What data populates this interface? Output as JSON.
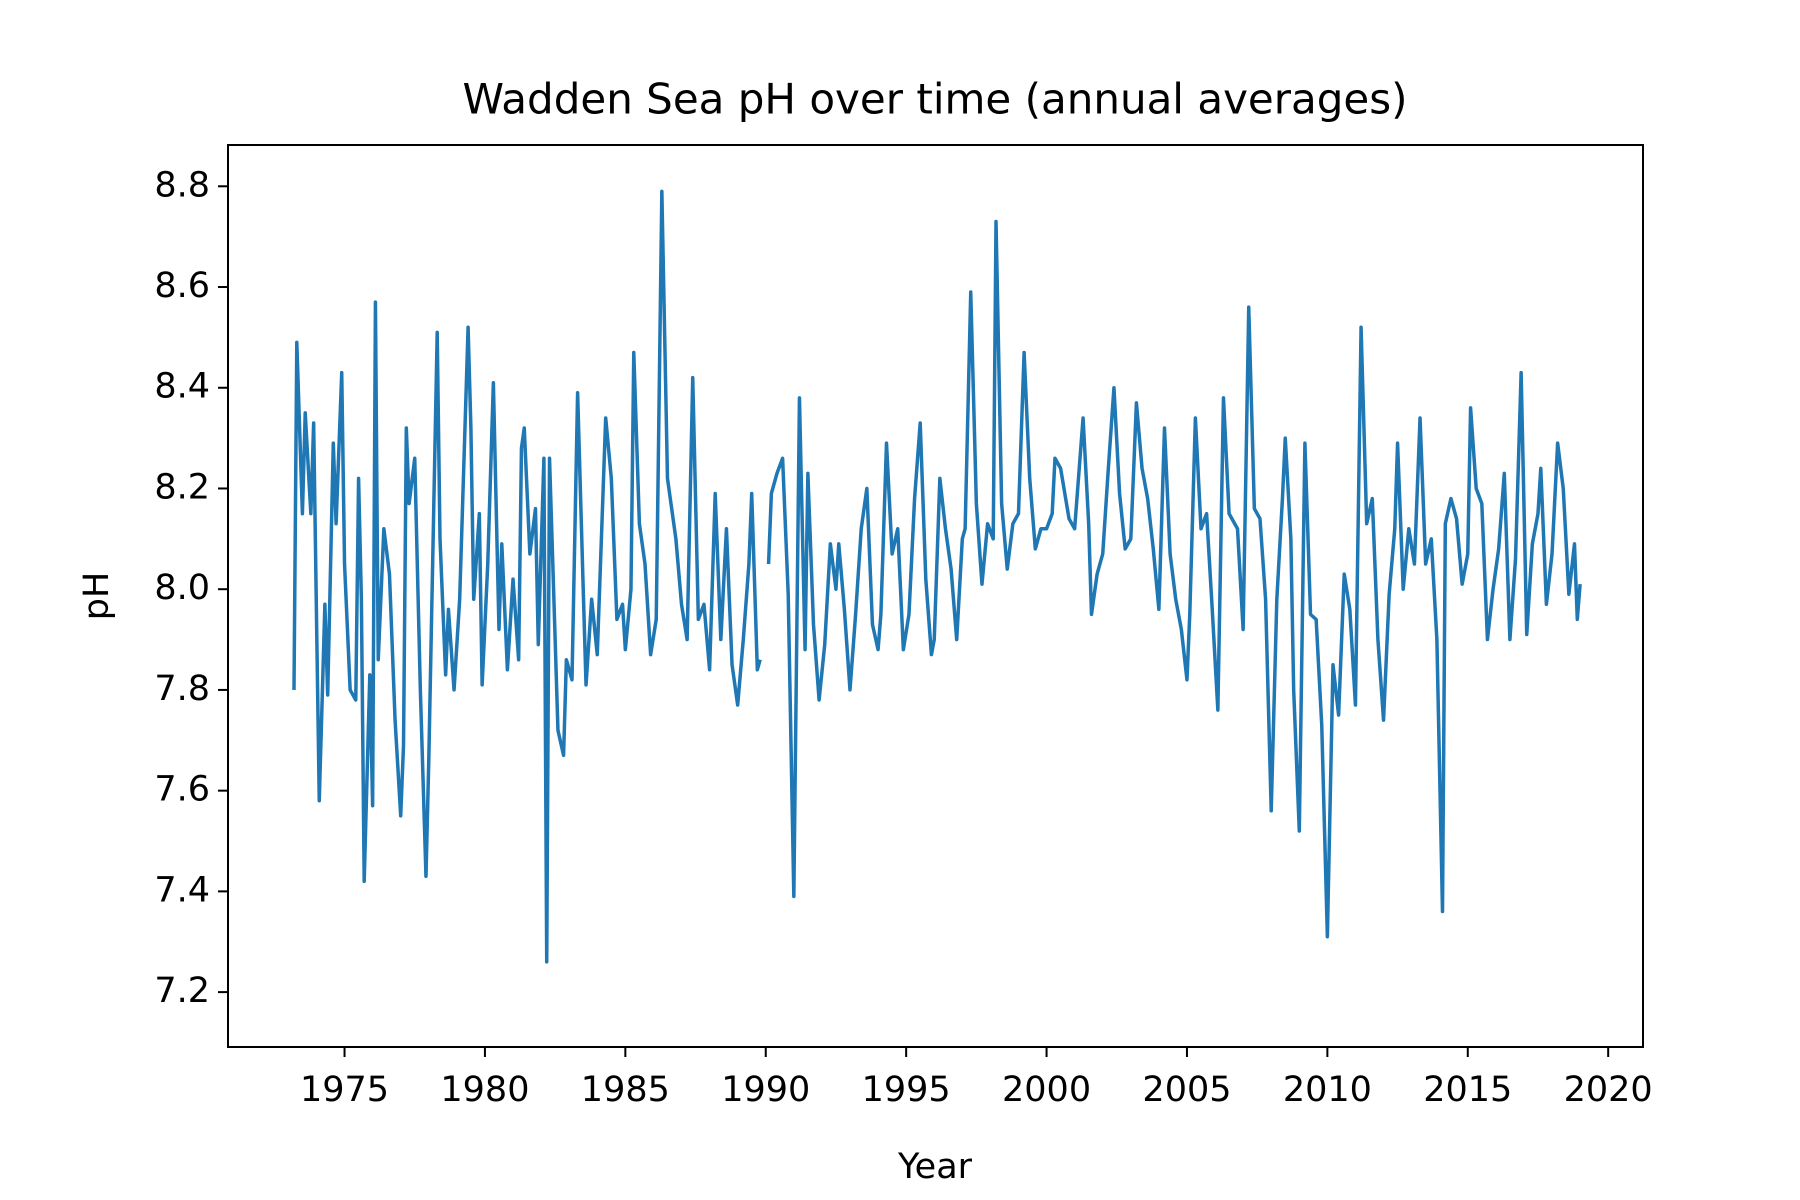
{
  "chart_data": {
    "type": "line",
    "title": "Wadden Sea pH over time (annual averages)",
    "x_label": "Year",
    "y_label": "pH",
    "x": [
      1973.2,
      1973.3,
      1973.5,
      1973.6,
      1973.8,
      1973.9,
      1974.0,
      1974.1,
      1974.3,
      1974.4,
      1974.6,
      1974.7,
      1974.9,
      1975.0,
      1975.2,
      1975.4,
      1975.5,
      1975.6,
      1975.7,
      1975.9,
      1976.0,
      1976.1,
      1976.2,
      1976.4,
      1976.6,
      1976.8,
      1977.0,
      1977.1,
      1977.2,
      1977.3,
      1977.5,
      1977.7,
      1977.9,
      1978.0,
      1978.3,
      1978.4,
      1978.6,
      1978.7,
      1978.9,
      1979.1,
      1979.4,
      1979.5,
      1979.6,
      1979.8,
      1979.9,
      1980.1,
      1980.3,
      1980.5,
      1980.6,
      1980.8,
      1981.0,
      1981.2,
      1981.3,
      1981.4,
      1981.6,
      1981.8,
      1981.9,
      1982.1,
      1982.2,
      1982.3,
      1982.6,
      1982.8,
      1982.9,
      1983.1,
      1983.3,
      1983.5,
      1983.6,
      1983.8,
      1984.0,
      1984.3,
      1984.5,
      1984.7,
      1984.9,
      1985.0,
      1985.2,
      1985.3,
      1985.5,
      1985.7,
      1985.9,
      1986.1,
      1986.3,
      1986.5,
      1986.8,
      1987.0,
      1987.2,
      1987.4,
      1987.6,
      1987.8,
      1988.0,
      1988.2,
      1988.4,
      1988.6,
      1988.8,
      1989.0,
      1989.2,
      1989.4,
      1989.5,
      1989.7,
      1989.8,
      1989.9,
      1990.1,
      1990.2,
      1990.4,
      1990.6,
      1990.8,
      1991.0,
      1991.2,
      1991.4,
      1991.5,
      1991.7,
      1991.9,
      1992.1,
      1992.3,
      1992.5,
      1992.6,
      1992.8,
      1993.0,
      1993.2,
      1993.4,
      1993.6,
      1993.8,
      1994.0,
      1994.1,
      1994.3,
      1994.5,
      1994.7,
      1994.9,
      1995.1,
      1995.3,
      1995.5,
      1995.7,
      1995.9,
      1996.0,
      1996.2,
      1996.4,
      1996.6,
      1996.8,
      1997.0,
      1997.1,
      1997.3,
      1997.5,
      1997.7,
      1997.9,
      1998.1,
      1998.2,
      1998.4,
      1998.6,
      1998.8,
      1999.0,
      1999.2,
      1999.4,
      1999.6,
      1999.8,
      2000.0,
      2000.2,
      2000.3,
      2000.5,
      2000.8,
      2001.0,
      2001.3,
      2001.5,
      2001.6,
      2001.8,
      2002.0,
      2002.2,
      2002.4,
      2002.6,
      2002.8,
      2003.0,
      2003.2,
      2003.4,
      2003.6,
      2003.8,
      2004.0,
      2004.2,
      2004.4,
      2004.6,
      2004.8,
      2005.0,
      2005.1,
      2005.3,
      2005.5,
      2005.7,
      2005.9,
      2006.1,
      2006.3,
      2006.5,
      2006.8,
      2007.0,
      2007.2,
      2007.4,
      2007.6,
      2007.8,
      2008.0,
      2008.2,
      2008.4,
      2008.5,
      2008.7,
      2008.8,
      2009.0,
      2009.2,
      2009.4,
      2009.6,
      2009.8,
      2010.0,
      2010.2,
      2010.4,
      2010.6,
      2010.8,
      2011.0,
      2011.2,
      2011.4,
      2011.6,
      2011.8,
      2012.0,
      2012.2,
      2012.4,
      2012.5,
      2012.7,
      2012.9,
      2013.1,
      2013.3,
      2013.5,
      2013.7,
      2013.9,
      2014.1,
      2014.2,
      2014.4,
      2014.6,
      2014.8,
      2015.0,
      2015.1,
      2015.3,
      2015.5,
      2015.7,
      2015.9,
      2016.1,
      2016.3,
      2016.5,
      2016.7,
      2016.9,
      2017.1,
      2017.3,
      2017.5,
      2017.6,
      2017.8,
      2018.0,
      2018.2,
      2018.4,
      2018.6,
      2018.8,
      2018.9,
      2019.0
    ],
    "series": [
      {
        "name": "pH",
        "color": "#1f77b4",
        "values": [
          7.8,
          8.49,
          8.15,
          8.35,
          8.15,
          8.33,
          7.95,
          7.58,
          7.97,
          7.79,
          8.29,
          8.13,
          8.43,
          8.05,
          7.8,
          7.78,
          8.22,
          7.98,
          7.42,
          7.83,
          7.57,
          8.57,
          7.86,
          8.12,
          8.03,
          7.74,
          7.55,
          7.69,
          8.32,
          8.17,
          8.26,
          7.8,
          7.43,
          7.66,
          8.51,
          8.1,
          7.83,
          7.96,
          7.8,
          7.98,
          8.52,
          8.32,
          7.98,
          8.15,
          7.81,
          8.05,
          8.41,
          7.92,
          8.09,
          7.84,
          8.02,
          7.86,
          8.28,
          8.32,
          8.07,
          8.16,
          7.89,
          8.26,
          7.26,
          8.26,
          7.72,
          7.67,
          7.86,
          7.82,
          8.39,
          8.0,
          7.81,
          7.98,
          7.87,
          8.34,
          8.22,
          7.94,
          7.97,
          7.88,
          8.0,
          8.47,
          8.13,
          8.05,
          7.87,
          7.94,
          8.79,
          8.22,
          8.1,
          7.97,
          7.9,
          8.42,
          7.94,
          7.97,
          7.84,
          8.19,
          7.9,
          8.12,
          7.85,
          7.77,
          7.9,
          8.05,
          8.19,
          7.84,
          7.86,
          null,
          8.05,
          8.19,
          8.23,
          8.26,
          7.99,
          7.39,
          8.38,
          7.88,
          8.23,
          7.93,
          7.78,
          7.89,
          8.09,
          8.0,
          8.09,
          7.96,
          7.8,
          7.95,
          8.12,
          8.2,
          7.93,
          7.88,
          7.95,
          8.29,
          8.07,
          8.12,
          7.88,
          7.95,
          8.18,
          8.33,
          8.02,
          7.87,
          7.9,
          8.22,
          8.12,
          8.04,
          7.9,
          8.1,
          8.12,
          8.59,
          8.17,
          8.01,
          8.13,
          8.1,
          8.73,
          8.17,
          8.04,
          8.13,
          8.15,
          8.47,
          8.22,
          8.08,
          8.12,
          8.12,
          8.15,
          8.26,
          8.24,
          8.14,
          8.12,
          8.34,
          8.13,
          7.95,
          8.03,
          8.07,
          8.24,
          8.4,
          8.19,
          8.08,
          8.1,
          8.37,
          8.24,
          8.18,
          8.08,
          7.96,
          8.32,
          8.07,
          7.98,
          7.92,
          7.82,
          7.95,
          8.34,
          8.12,
          8.15,
          7.96,
          7.76,
          8.38,
          8.15,
          8.12,
          7.92,
          8.56,
          8.16,
          8.14,
          7.98,
          7.56,
          7.98,
          8.18,
          8.3,
          8.1,
          7.8,
          7.52,
          8.29,
          7.95,
          7.94,
          7.73,
          7.31,
          7.85,
          7.75,
          8.03,
          7.96,
          7.77,
          8.52,
          8.13,
          8.18,
          7.9,
          7.74,
          7.99,
          8.12,
          8.29,
          8.0,
          8.12,
          8.05,
          8.34,
          8.05,
          8.1,
          7.9,
          7.36,
          8.13,
          8.18,
          8.14,
          8.01,
          8.07,
          8.36,
          8.2,
          8.17,
          7.9,
          8.0,
          8.08,
          8.23,
          7.9,
          8.06,
          8.43,
          7.91,
          8.09,
          8.15,
          8.24,
          7.97,
          8.07,
          8.29,
          8.2,
          7.99,
          8.09,
          7.94,
          8.01
        ]
      }
    ],
    "xlim": [
      1970.85,
      2021.24
    ],
    "ylim": [
      7.091,
      8.882
    ],
    "xticks": [
      1975,
      1980,
      1985,
      1990,
      1995,
      2000,
      2005,
      2010,
      2015,
      2020
    ],
    "yticks": [
      7.2,
      7.4,
      7.6,
      7.8,
      {
        "value": 8,
        "label": "8.0"
      },
      8.2,
      8.4,
      8.6,
      8.8
    ],
    "grid": false
  }
}
